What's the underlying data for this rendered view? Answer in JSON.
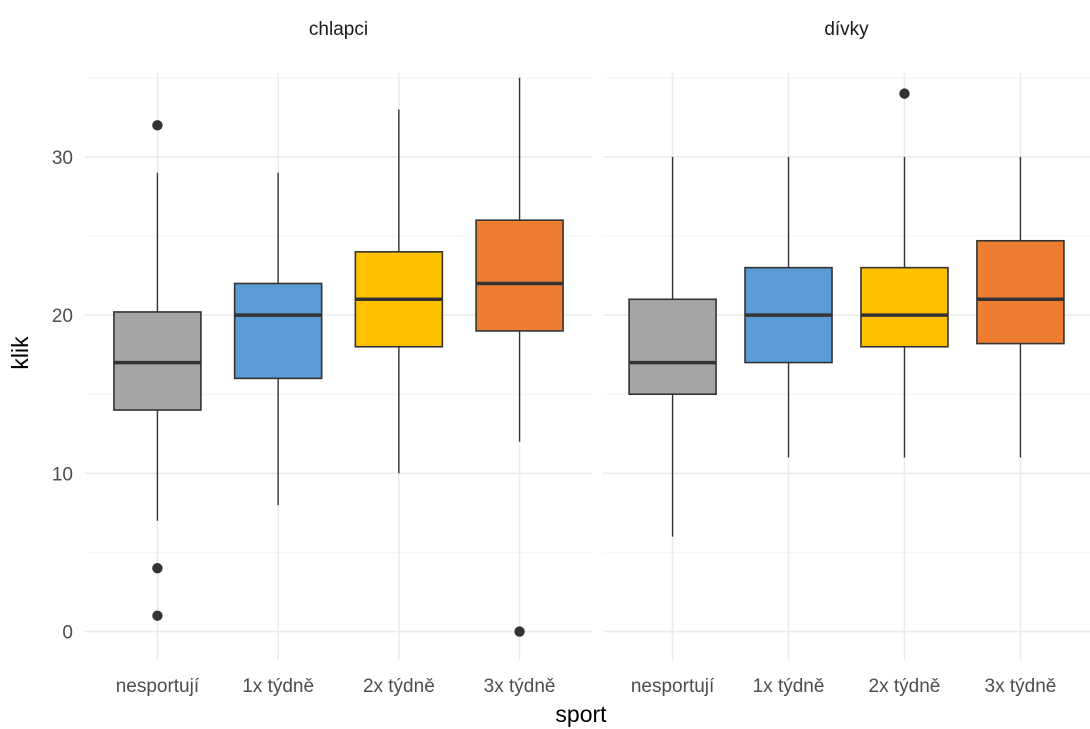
{
  "chart_data": {
    "type": "boxplot",
    "xlabel": "sport",
    "ylabel": "klik",
    "ylim": [
      -1.8,
      37.2
    ],
    "y_ticks": [
      0,
      10,
      20,
      30
    ],
    "grid": true,
    "legend": "none",
    "categories": [
      "nesportují",
      "1x týdně",
      "2x týdně",
      "3x týdně"
    ],
    "colors": [
      "#A5A5A5",
      "#5B9BD5",
      "#FFC000",
      "#ED7D31"
    ],
    "panels": [
      {
        "name": "chlapci",
        "boxes": [
          {
            "category": "nesportují",
            "min": 7,
            "q1": 14,
            "median": 17,
            "q3": 20.2,
            "max": 29,
            "outliers": [
              32,
              4,
              1
            ]
          },
          {
            "category": "1x týdně",
            "min": 8,
            "q1": 16,
            "median": 20,
            "q3": 22,
            "max": 29,
            "outliers": []
          },
          {
            "category": "2x týdně",
            "min": 10,
            "q1": 18,
            "median": 21,
            "q3": 24,
            "max": 33,
            "outliers": []
          },
          {
            "category": "3x týdně",
            "min": 12,
            "q1": 19,
            "median": 22,
            "q3": 26,
            "max": 35,
            "outliers": [
              0
            ]
          }
        ]
      },
      {
        "name": "dívky",
        "boxes": [
          {
            "category": "nesportují",
            "min": 6,
            "q1": 15,
            "median": 17,
            "q3": 21,
            "max": 30,
            "outliers": []
          },
          {
            "category": "1x týdně",
            "min": 11,
            "q1": 17,
            "median": 20,
            "q3": 23,
            "max": 30,
            "outliers": []
          },
          {
            "category": "2x týdně",
            "min": 11,
            "q1": 18,
            "median": 20,
            "q3": 23,
            "max": 30,
            "outliers": [
              34
            ]
          },
          {
            "category": "3x týdně",
            "min": 11,
            "q1": 18.2,
            "median": 21,
            "q3": 24.7,
            "max": 30,
            "outliers": []
          }
        ]
      }
    ]
  }
}
